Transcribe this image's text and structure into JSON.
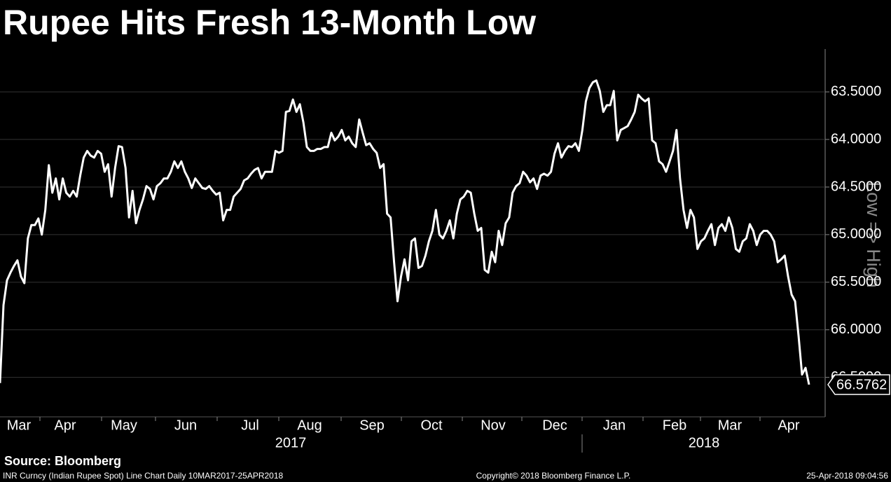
{
  "chart_data": {
    "type": "line",
    "title": "Rupee Hits Fresh 13-Month Low",
    "source": "Source: Bloomberg",
    "y_axis_label": "Low => High",
    "y_inverted": true,
    "grid": true,
    "months": [
      "Mar",
      "Apr",
      "May",
      "Jun",
      "Jul",
      "Aug",
      "Sep",
      "Oct",
      "Nov",
      "Dec",
      "Jan",
      "Feb",
      "Mar",
      "Apr"
    ],
    "years": [
      "2017",
      "2018"
    ],
    "ylim": [
      63.05,
      66.9
    ],
    "yticks": [
      {
        "value": 63.5,
        "label": "63.5000"
      },
      {
        "value": 64.0,
        "label": "64.0000"
      },
      {
        "value": 64.5,
        "label": "64.5000"
      },
      {
        "value": 65.0,
        "label": "65.0000"
      },
      {
        "value": 65.5,
        "label": "65.5000"
      },
      {
        "value": 66.0,
        "label": "66.0000"
      },
      {
        "value": 66.5,
        "label": "66.5000"
      }
    ],
    "series": [
      {
        "name": "INR Curncy",
        "color": "#ffffff",
        "values": [
          66.56,
          65.74,
          65.48,
          65.4,
          65.33,
          65.27,
          65.44,
          65.51,
          65.04,
          64.9,
          64.9,
          64.83,
          65.0,
          64.74,
          64.27,
          64.56,
          64.41,
          64.63,
          64.41,
          64.56,
          64.6,
          64.54,
          64.6,
          64.38,
          64.19,
          64.12,
          64.17,
          64.19,
          64.12,
          64.15,
          64.34,
          64.26,
          64.6,
          64.3,
          64.07,
          64.08,
          64.3,
          64.82,
          64.54,
          64.88,
          64.74,
          64.63,
          64.49,
          64.52,
          64.63,
          64.49,
          64.46,
          64.41,
          64.41,
          64.34,
          64.23,
          64.3,
          64.23,
          64.34,
          64.41,
          64.51,
          64.41,
          64.46,
          64.51,
          64.52,
          64.49,
          64.54,
          64.58,
          64.56,
          64.85,
          64.74,
          64.74,
          64.6,
          64.56,
          64.52,
          64.43,
          64.41,
          64.36,
          64.32,
          64.3,
          64.41,
          64.34,
          64.34,
          64.34,
          64.12,
          64.14,
          64.12,
          63.71,
          63.7,
          63.58,
          63.71,
          63.63,
          63.82,
          64.08,
          64.12,
          64.12,
          64.1,
          64.1,
          64.08,
          64.08,
          63.93,
          64.01,
          63.97,
          63.9,
          64.01,
          63.97,
          64.04,
          64.08,
          63.79,
          63.93,
          64.06,
          64.04,
          64.1,
          64.14,
          64.3,
          64.26,
          64.78,
          64.82,
          65.29,
          65.7,
          65.44,
          65.26,
          65.48,
          65.07,
          65.04,
          65.35,
          65.33,
          65.22,
          65.07,
          64.96,
          64.74,
          65.0,
          65.04,
          64.96,
          64.85,
          65.04,
          64.78,
          64.63,
          64.6,
          64.54,
          64.56,
          64.78,
          64.96,
          64.93,
          65.37,
          65.4,
          65.18,
          65.29,
          64.96,
          65.11,
          64.88,
          64.82,
          64.56,
          64.49,
          64.46,
          64.34,
          64.38,
          64.45,
          64.41,
          64.52,
          64.38,
          64.36,
          64.38,
          64.34,
          64.15,
          64.04,
          64.19,
          64.12,
          64.07,
          64.08,
          64.04,
          64.12,
          63.9,
          63.6,
          63.46,
          63.4,
          63.38,
          63.49,
          63.71,
          63.64,
          63.64,
          63.49,
          64.01,
          63.9,
          63.88,
          63.86,
          63.79,
          63.71,
          63.53,
          63.57,
          63.6,
          63.57,
          64.01,
          64.04,
          64.23,
          64.26,
          64.34,
          64.23,
          64.12,
          63.9,
          64.41,
          64.74,
          64.93,
          64.74,
          64.82,
          65.15,
          65.07,
          65.04,
          64.96,
          64.89,
          65.11,
          64.93,
          64.89,
          64.96,
          64.82,
          64.93,
          65.15,
          65.18,
          65.07,
          65.04,
          64.89,
          64.96,
          65.11,
          65.0,
          64.96,
          64.96,
          65.0,
          65.07,
          65.29,
          65.26,
          65.22,
          65.44,
          65.63,
          65.7,
          66.07,
          66.47,
          66.4,
          66.5762
        ]
      }
    ]
  },
  "footer": {
    "description": "INR Curncy (Indian Rupee Spot) Line Chart  Daily 10MAR2017-25APR2018",
    "copyright": "Copyright© 2018 Bloomberg Finance L.P.",
    "timestamp": "25-Apr-2018 09:04:56"
  }
}
